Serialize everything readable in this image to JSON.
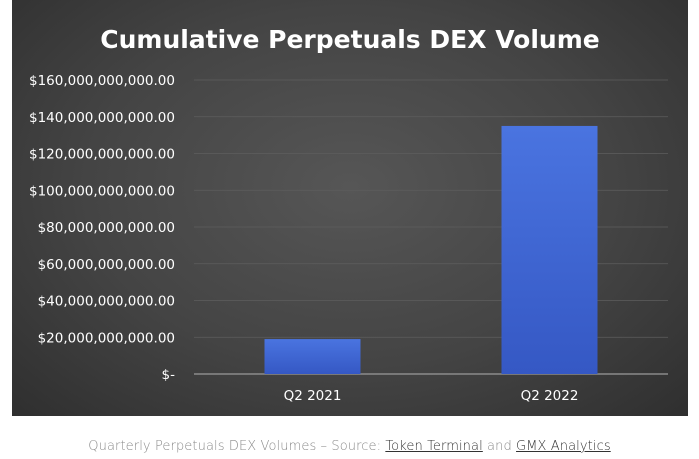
{
  "chart_data": {
    "type": "bar",
    "title": "Cumulative Perpetuals DEX Volume",
    "categories": [
      "Q2 2021",
      "Q2 2022"
    ],
    "values": [
      19000000000,
      135000000000
    ],
    "ylim": [
      0,
      160000000000
    ],
    "ytick_values": [
      0,
      20000000000,
      40000000000,
      60000000000,
      80000000000,
      100000000000,
      120000000000,
      140000000000,
      160000000000
    ],
    "ytick_labels": [
      "$-",
      "$20,000,000,000.00",
      "$40,000,000,000.00",
      "$60,000,000,000.00",
      "$80,000,000,000.00",
      "$100,000,000,000.00",
      "$120,000,000,000.00",
      "$140,000,000,000.00",
      "$160,000,000,000.00"
    ],
    "xlabel": "",
    "ylabel": "",
    "grid": true,
    "legend": "none",
    "bar_color": "#3f67d6",
    "background_color": "#474747",
    "text_color": "#ffffff"
  },
  "caption": {
    "prefix": "Quarterly Perpetuals DEX Volumes – Source: ",
    "link1": "Token Terminal",
    "middle": " and ",
    "link2": "GMX Analytics"
  }
}
